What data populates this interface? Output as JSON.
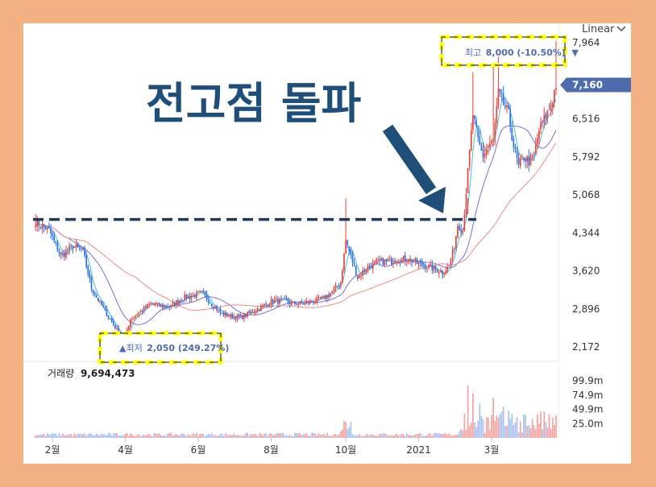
{
  "chart_data": {
    "type": "candlestick",
    "scale_label": "Linear",
    "headline": "전고점 돌파",
    "price_axis": {
      "ylim": [
        1900,
        8300
      ],
      "ticks": [
        "7,964",
        "7,160",
        "6,516",
        "5,792",
        "5,068",
        "4,344",
        "3,620",
        "2,896",
        "2,172"
      ],
      "tick_values": [
        7964,
        7160,
        6516,
        5792,
        5068,
        4344,
        3620,
        2896,
        2172
      ],
      "current_price": 7160
    },
    "x_ticks": [
      "2월",
      "4월",
      "6월",
      "8월",
      "10월",
      "2021",
      "3월"
    ],
    "x_tick_index": [
      10,
      53,
      96,
      139,
      183,
      226,
      269
    ],
    "high_label": {
      "prefix": "최고",
      "value": "8,000 (-10.50%)",
      "marker": "▼"
    },
    "low_label": {
      "prefix": "▲최저",
      "value": "2,050 (249.27%)"
    },
    "prior_high_level": 4600,
    "volume": {
      "label": "거래량",
      "value": "9,694,473",
      "ticks": [
        "99.9m",
        "74.9m",
        "49.9m",
        "25.0m"
      ],
      "tick_values": [
        99.9,
        74.9,
        49.9,
        25.0
      ],
      "max": 120
    },
    "keypoints": [
      [
        0,
        4550
      ],
      [
        8,
        4400
      ],
      [
        15,
        3900
      ],
      [
        22,
        4100
      ],
      [
        28,
        4000
      ],
      [
        33,
        3300
      ],
      [
        40,
        2900
      ],
      [
        47,
        2550
      ],
      [
        52,
        2300
      ],
      [
        56,
        2700
      ],
      [
        62,
        2850
      ],
      [
        68,
        3000
      ],
      [
        74,
        2950
      ],
      [
        80,
        2950
      ],
      [
        86,
        3100
      ],
      [
        92,
        3150
      ],
      [
        98,
        3200
      ],
      [
        104,
        3000
      ],
      [
        110,
        2800
      ],
      [
        116,
        2750
      ],
      [
        122,
        2750
      ],
      [
        128,
        2850
      ],
      [
        134,
        2950
      ],
      [
        140,
        3050
      ],
      [
        146,
        3050
      ],
      [
        152,
        3000
      ],
      [
        158,
        3000
      ],
      [
        164,
        3050
      ],
      [
        170,
        3100
      ],
      [
        176,
        3250
      ],
      [
        180,
        3400
      ],
      [
        183,
        4200
      ],
      [
        186,
        3900
      ],
      [
        190,
        3500
      ],
      [
        196,
        3700
      ],
      [
        202,
        3800
      ],
      [
        208,
        3800
      ],
      [
        214,
        3850
      ],
      [
        220,
        3850
      ],
      [
        226,
        3750
      ],
      [
        232,
        3700
      ],
      [
        236,
        3650
      ],
      [
        240,
        3600
      ],
      [
        244,
        3700
      ],
      [
        247,
        4100
      ],
      [
        249,
        4500
      ],
      [
        252,
        4400
      ],
      [
        255,
        5500
      ],
      [
        258,
        6600
      ],
      [
        261,
        6100
      ],
      [
        264,
        5800
      ],
      [
        267,
        6000
      ],
      [
        270,
        6100
      ],
      [
        273,
        7000
      ],
      [
        276,
        6800
      ],
      [
        279,
        6600
      ],
      [
        282,
        6000
      ],
      [
        285,
        5600
      ],
      [
        288,
        5800
      ],
      [
        291,
        5700
      ],
      [
        294,
        5800
      ],
      [
        297,
        6300
      ],
      [
        300,
        6500
      ],
      [
        303,
        6700
      ],
      [
        305,
        6900
      ],
      [
        307,
        7160
      ]
    ],
    "spikes": [
      [
        0,
        4700
      ],
      [
        183,
        5000
      ],
      [
        255,
        4700
      ],
      [
        258,
        7400
      ],
      [
        270,
        7500
      ],
      [
        273,
        7700
      ],
      [
        307,
        8000
      ]
    ],
    "lows": [
      [
        52,
        2050
      ]
    ]
  },
  "colors": {
    "up": "#e8413a",
    "down": "#2f6ede",
    "ma5": "#3cc0e0",
    "ma20": "#7b6fd6",
    "ma60": "#f08a86",
    "arrow": "#1f4e79",
    "dashed": "#1f3b57",
    "highlight": "#ffff00",
    "price_tag": "#4e6bab"
  }
}
